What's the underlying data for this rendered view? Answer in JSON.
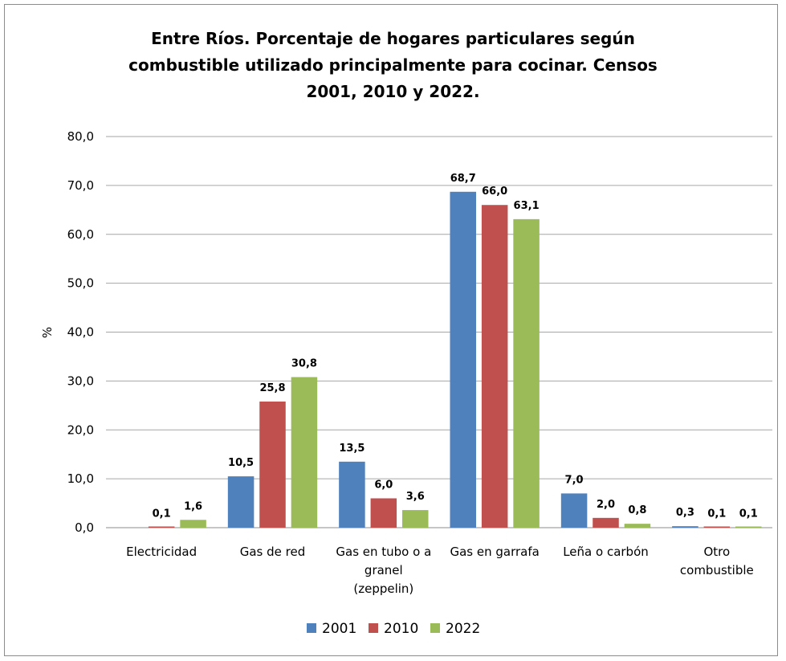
{
  "chart_data": {
    "type": "bar",
    "title_lines": [
      "Entre Ríos. Porcentaje de hogares particulares según",
      "combustible utilizado principalmente para cocinar. Censos",
      "2001, 2010 y 2022."
    ],
    "ylabel": "%",
    "xlabel": "",
    "ylim": [
      0,
      80
    ],
    "yticks": [
      "0,0",
      "10,0",
      "20,0",
      "30,0",
      "40,0",
      "50,0",
      "60,0",
      "70,0",
      "80,0"
    ],
    "grid": true,
    "legend_position": "bottom",
    "categories": [
      [
        "Electricidad"
      ],
      [
        "Gas de red"
      ],
      [
        "Gas en tubo o a",
        "granel",
        "(zeppelin)"
      ],
      [
        "Gas en garrafa"
      ],
      [
        "Leña o carbón"
      ],
      [
        "Otro",
        "combustible"
      ]
    ],
    "series": [
      {
        "name": "2001",
        "color": "#4f81bd",
        "values": [
          null,
          10.5,
          13.5,
          68.7,
          7.0,
          0.3
        ],
        "labels": [
          "",
          "10,5",
          "13,5",
          "68,7",
          "7,0",
          "0,3"
        ]
      },
      {
        "name": "2010",
        "color": "#c0504d",
        "values": [
          0.1,
          25.8,
          6.0,
          66.0,
          2.0,
          0.1
        ],
        "labels": [
          "0,1",
          "25,8",
          "6,0",
          "66,0",
          "2,0",
          "0,1"
        ]
      },
      {
        "name": "2022",
        "color": "#9bbb59",
        "values": [
          1.6,
          30.8,
          3.6,
          63.1,
          0.8,
          0.1
        ],
        "labels": [
          "1,6",
          "30,8",
          "3,6",
          "63,1",
          "0,8",
          "0,1"
        ]
      }
    ]
  }
}
